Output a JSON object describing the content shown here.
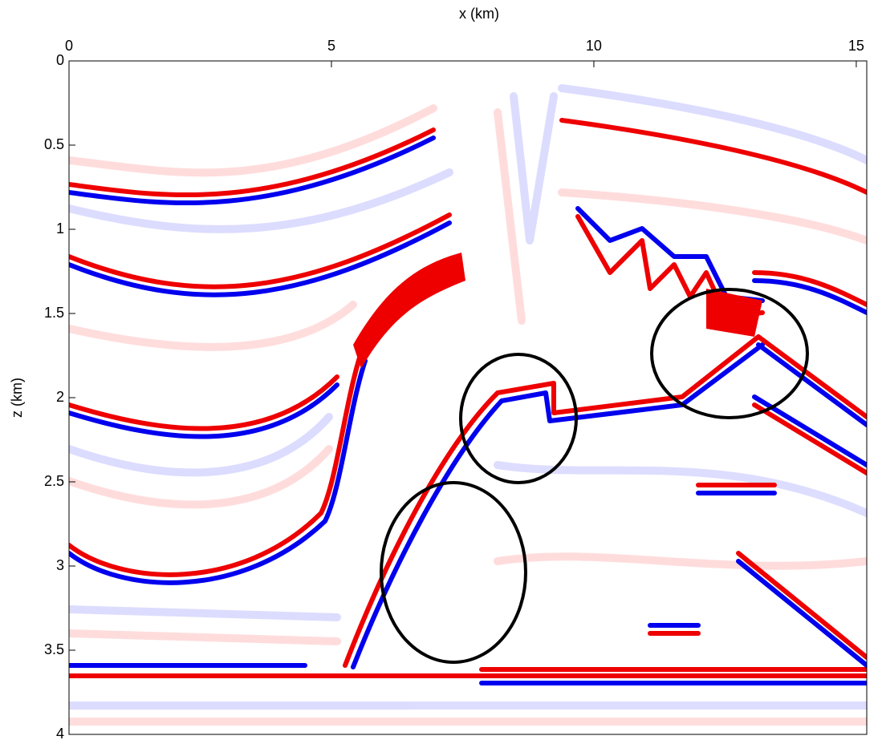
{
  "chart_data": {
    "type": "image",
    "x_label": "x (km)",
    "y_label": "z (km)",
    "xlim": [
      0,
      15.2
    ],
    "ylim": [
      0,
      4
    ],
    "xticks": [
      0,
      5,
      10,
      15
    ],
    "yticks": [
      0,
      0.5,
      1,
      1.5,
      2,
      2.5,
      3,
      3.5,
      4
    ],
    "x_axis_position": "top",
    "y_inverted": true
  }
}
